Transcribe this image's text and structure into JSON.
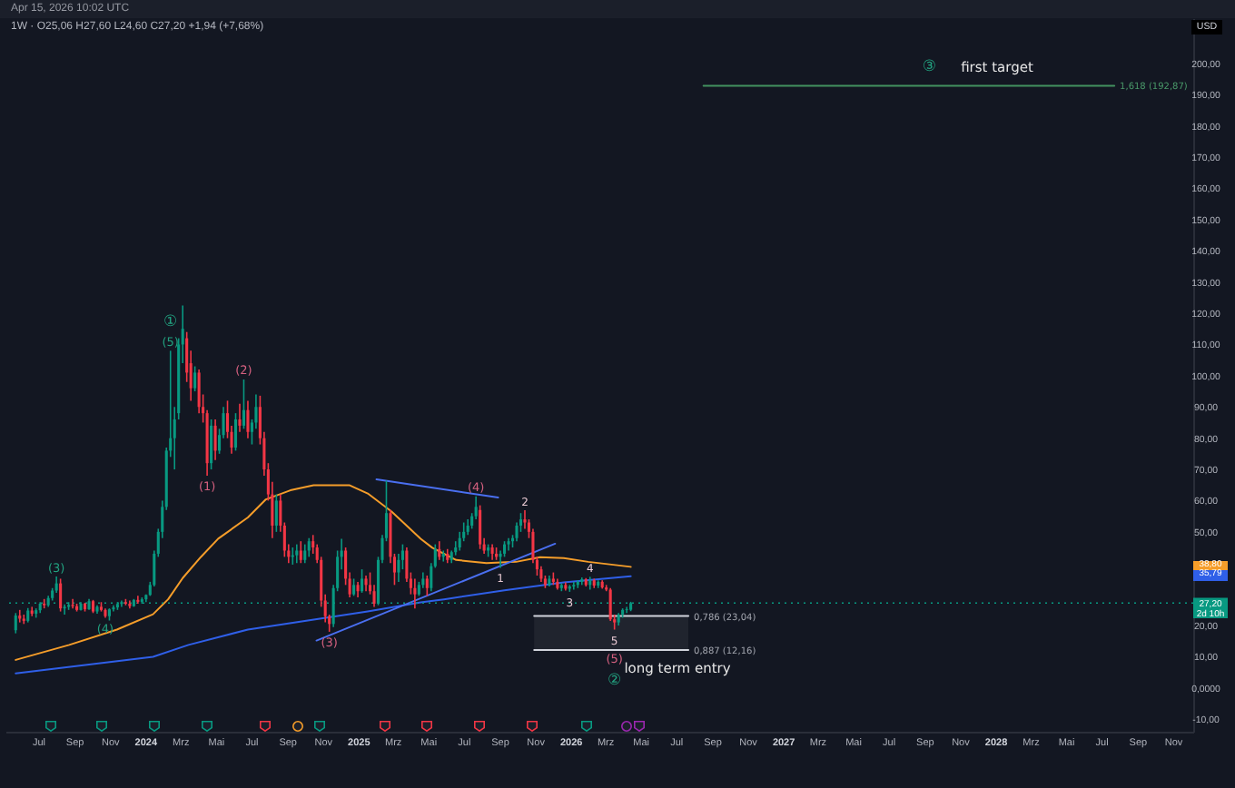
{
  "chart_data": {
    "type": "candlestick",
    "title": "Apr 15, 2026 10:02 UTC",
    "subtitle": "1W · O25,06 H27,60 L24,60 C27,20 +1,94 (+7,68%)",
    "ylabel": "USD",
    "x": [
      "2023-05-22",
      "2023-05-29",
      "2023-06-05",
      "2023-06-12",
      "2023-06-19",
      "2023-06-26",
      "2023-07-03",
      "2023-07-10",
      "2023-07-17",
      "2023-07-24",
      "2023-07-31",
      "2023-08-07",
      "2023-08-14",
      "2023-08-21",
      "2023-08-28",
      "2023-09-04",
      "2023-09-11",
      "2023-09-18",
      "2023-09-25",
      "2023-10-02",
      "2023-10-09",
      "2023-10-16",
      "2023-10-23",
      "2023-10-30",
      "2023-11-06",
      "2023-11-13",
      "2023-11-20",
      "2023-11-27",
      "2023-12-04",
      "2023-12-11",
      "2023-12-18",
      "2023-12-25",
      "2024-01-01",
      "2024-01-08",
      "2024-01-15",
      "2024-01-22",
      "2024-01-29",
      "2024-02-05",
      "2024-02-12",
      "2024-02-19",
      "2024-02-26",
      "2024-03-04",
      "2024-03-11",
      "2024-03-18",
      "2024-03-25",
      "2024-04-01",
      "2024-04-08",
      "2024-04-15",
      "2024-04-22",
      "2024-04-29",
      "2024-05-06",
      "2024-05-13",
      "2024-05-20",
      "2024-05-27",
      "2024-06-03",
      "2024-06-10",
      "2024-06-17",
      "2024-06-24",
      "2024-07-01",
      "2024-07-08",
      "2024-07-15",
      "2024-07-22",
      "2024-07-29",
      "2024-08-05",
      "2024-08-12",
      "2024-08-19",
      "2024-08-26",
      "2024-09-02",
      "2024-09-09",
      "2024-09-16",
      "2024-09-23",
      "2024-09-30",
      "2024-10-07",
      "2024-10-14",
      "2024-10-21",
      "2024-10-28",
      "2024-11-04",
      "2024-11-11",
      "2024-11-18",
      "2024-11-25",
      "2024-12-02",
      "2024-12-09",
      "2024-12-16",
      "2024-12-23",
      "2024-12-30",
      "2025-01-06",
      "2025-01-13",
      "2025-01-20",
      "2025-01-27",
      "2025-02-03",
      "2025-02-10",
      "2025-02-17",
      "2025-02-24",
      "2025-03-03",
      "2025-03-10",
      "2025-03-17",
      "2025-03-24",
      "2025-03-31",
      "2025-04-07",
      "2025-04-14",
      "2025-04-21",
      "2025-04-28",
      "2025-05-05",
      "2025-05-12",
      "2025-05-19",
      "2025-05-26",
      "2025-06-02",
      "2025-06-09",
      "2025-06-16",
      "2025-06-23",
      "2025-06-30",
      "2025-07-07",
      "2025-07-14",
      "2025-07-21",
      "2025-07-28",
      "2025-08-04",
      "2025-08-11",
      "2025-08-18",
      "2025-08-25",
      "2025-09-01",
      "2025-09-08",
      "2025-09-15",
      "2025-09-22",
      "2025-09-29",
      "2025-10-06",
      "2025-10-13",
      "2025-10-20",
      "2025-10-27",
      "2025-11-03",
      "2025-11-10",
      "2025-11-17",
      "2025-11-24",
      "2025-12-01",
      "2025-12-08",
      "2025-12-15",
      "2025-12-22",
      "2025-12-29",
      "2026-01-05",
      "2026-01-12",
      "2026-01-19",
      "2026-01-26",
      "2026-02-02",
      "2026-02-09",
      "2026-02-16",
      "2026-02-23",
      "2026-03-02",
      "2026-03-09",
      "2026-03-16",
      "2026-03-23",
      "2026-03-30",
      "2026-04-06",
      "2026-04-13"
    ],
    "ohlc": [
      [
        18.5,
        24,
        17.5,
        23.2
      ],
      [
        23.2,
        25,
        21,
        22.2
      ],
      [
        22.2,
        23.5,
        20.5,
        21.5
      ],
      [
        21.5,
        25.6,
        21,
        24.8
      ],
      [
        24.8,
        26,
        23,
        23.8
      ],
      [
        23.8,
        25.5,
        22.5,
        24.9
      ],
      [
        24.9,
        27.5,
        24,
        27
      ],
      [
        27,
        28.5,
        25.5,
        26.5
      ],
      [
        26.5,
        29.5,
        26,
        28.8
      ],
      [
        28.8,
        32,
        28,
        31.2
      ],
      [
        31.2,
        35.7,
        30.5,
        33.5
      ],
      [
        33.5,
        35,
        24.5,
        25.5
      ],
      [
        25.5,
        26.8,
        23.5,
        26
      ],
      [
        26,
        27.5,
        25,
        26.6
      ],
      [
        26.6,
        28.5,
        25.5,
        26.2
      ],
      [
        26.2,
        27,
        24.5,
        25
      ],
      [
        25,
        27.5,
        24.8,
        27
      ],
      [
        27,
        27.3,
        24.5,
        25.2
      ],
      [
        25.2,
        28.5,
        25,
        27.8
      ],
      [
        27.8,
        28.2,
        24,
        24.5
      ],
      [
        24.5,
        26.5,
        23.8,
        26
      ],
      [
        26,
        27.5,
        24.5,
        25
      ],
      [
        25,
        25.5,
        22.5,
        23
      ],
      [
        23,
        25.5,
        21.6,
        25.2
      ],
      [
        25.2,
        26.5,
        24.5,
        25.8
      ],
      [
        25.8,
        27.5,
        25,
        26.9
      ],
      [
        26.9,
        28,
        26,
        27.5
      ],
      [
        27.5,
        28.5,
        26.5,
        27
      ],
      [
        27,
        28,
        25.5,
        26.2
      ],
      [
        26.2,
        28.5,
        26,
        28.2
      ],
      [
        28.2,
        29.5,
        27,
        27.6
      ],
      [
        27.6,
        29,
        27,
        28.4
      ],
      [
        28.4,
        30,
        27.5,
        29.8
      ],
      [
        29.8,
        34,
        29.5,
        33
      ],
      [
        33,
        44,
        32.5,
        43
      ],
      [
        43,
        51,
        42,
        50
      ],
      [
        50,
        60,
        48,
        58
      ],
      [
        58,
        77,
        57,
        76
      ],
      [
        76,
        108,
        74,
        80
      ],
      [
        80,
        90,
        70,
        86
      ],
      [
        88,
        112,
        86,
        110
      ],
      [
        110,
        122.5,
        104,
        115
      ],
      [
        112,
        114,
        98,
        101
      ],
      [
        104,
        108,
        92,
        96
      ],
      [
        96,
        103,
        95,
        101
      ],
      [
        101,
        102,
        88,
        90
      ],
      [
        90,
        94,
        85,
        88
      ],
      [
        88,
        89,
        68,
        72
      ],
      [
        72,
        86,
        70,
        84
      ],
      [
        84,
        86,
        73,
        76
      ],
      [
        76,
        83,
        75,
        81
      ],
      [
        81,
        90,
        80,
        88
      ],
      [
        88,
        92,
        80,
        82
      ],
      [
        82,
        84,
        75,
        77
      ],
      [
        77,
        88,
        76,
        86
      ],
      [
        86,
        91,
        82,
        84
      ],
      [
        84,
        98.8,
        83,
        89
      ],
      [
        89,
        92,
        80,
        82
      ],
      [
        82,
        86,
        78,
        85
      ],
      [
        85,
        94,
        83,
        90
      ],
      [
        90,
        93.6,
        78,
        80
      ],
      [
        80,
        82,
        68,
        70
      ],
      [
        70,
        72,
        60,
        62
      ],
      [
        62,
        66,
        48,
        52
      ],
      [
        52,
        62,
        50,
        60
      ],
      [
        60,
        62,
        50,
        52
      ],
      [
        52,
        53,
        42,
        44
      ],
      [
        44,
        46,
        40,
        42
      ],
      [
        42,
        45,
        39.5,
        42.5
      ],
      [
        42.5,
        46,
        40,
        44
      ],
      [
        44,
        47,
        40,
        41
      ],
      [
        41,
        46,
        40,
        44
      ],
      [
        44,
        48,
        42,
        47
      ],
      [
        47,
        49,
        43,
        45
      ],
      [
        45,
        46,
        40,
        41
      ],
      [
        41,
        42,
        26,
        28
      ],
      [
        28,
        30,
        21,
        23
      ],
      [
        23,
        23.5,
        18,
        20.5
      ],
      [
        20.5,
        33,
        19.5,
        32
      ],
      [
        32,
        44,
        31,
        42
      ],
      [
        42,
        47.8,
        38,
        44
      ],
      [
        44,
        45,
        33,
        35
      ],
      [
        35,
        37,
        29,
        30
      ],
      [
        30,
        35,
        29.5,
        33
      ],
      [
        33,
        34,
        29,
        31
      ],
      [
        31,
        38,
        30.5,
        35
      ],
      [
        35,
        36,
        31,
        33
      ],
      [
        33,
        37,
        30,
        31
      ],
      [
        31,
        33,
        26,
        27
      ],
      [
        27,
        42,
        26.5,
        41
      ],
      [
        41,
        49,
        40,
        48
      ],
      [
        48,
        66.4,
        47,
        56
      ],
      [
        56,
        57,
        40,
        42
      ],
      [
        42,
        43,
        33,
        37
      ],
      [
        37,
        43,
        34,
        41
      ],
      [
        41,
        46,
        38,
        44
      ],
      [
        44,
        45,
        34,
        35
      ],
      [
        35,
        37,
        30,
        32
      ],
      [
        32,
        35,
        25.5,
        30
      ],
      [
        30,
        34,
        29.5,
        33
      ],
      [
        33,
        37,
        32,
        35
      ],
      [
        35,
        36,
        29.5,
        32
      ],
      [
        32,
        40,
        31,
        39
      ],
      [
        39,
        46,
        38.5,
        44.5
      ],
      [
        44.5,
        47,
        41,
        42
      ],
      [
        42,
        44,
        40.5,
        43
      ],
      [
        43,
        44.5,
        40,
        41
      ],
      [
        41,
        44,
        40,
        43.5
      ],
      [
        43.5,
        47,
        42.5,
        45
      ],
      [
        45,
        50,
        44,
        48
      ],
      [
        48,
        53,
        47,
        50
      ],
      [
        50,
        54,
        49,
        52
      ],
      [
        52,
        56,
        51,
        55
      ],
      [
        55,
        61.4,
        54,
        58
      ],
      [
        57,
        58.5,
        44.5,
        46
      ],
      [
        46,
        48,
        43,
        44
      ],
      [
        44,
        46,
        42,
        45
      ],
      [
        45,
        46,
        41,
        43
      ],
      [
        43,
        45,
        41,
        42
      ],
      [
        42,
        44,
        38.5,
        43
      ],
      [
        43,
        47,
        42,
        46
      ],
      [
        46,
        48,
        44,
        47
      ],
      [
        47,
        49,
        45,
        48
      ],
      [
        48,
        53,
        47,
        52
      ],
      [
        52,
        56,
        50,
        54
      ],
      [
        54,
        56.9,
        51,
        53
      ],
      [
        53,
        54,
        48,
        50
      ],
      [
        50,
        51,
        40,
        41
      ],
      [
        41,
        42,
        36,
        38
      ],
      [
        38,
        39,
        34,
        35
      ],
      [
        35,
        36,
        32,
        33
      ],
      [
        33,
        36,
        32.5,
        35
      ],
      [
        35,
        37,
        33,
        34
      ],
      [
        34,
        35,
        31.5,
        32
      ],
      [
        32,
        33.5,
        31,
        33
      ],
      [
        33,
        33.8,
        31.2,
        31.8
      ],
      [
        31.8,
        33,
        30.8,
        32.5
      ],
      [
        32.5,
        34,
        31.5,
        33
      ],
      [
        33,
        34.5,
        32,
        34
      ],
      [
        34,
        35.4,
        33,
        34.8
      ],
      [
        34.8,
        35.2,
        32.5,
        33
      ],
      [
        33,
        35.6,
        31.5,
        34.5
      ],
      [
        34.5,
        35,
        32,
        32.8
      ],
      [
        32.8,
        34.5,
        32,
        34
      ],
      [
        34,
        34.5,
        31.8,
        32.2
      ],
      [
        32.2,
        33,
        31,
        31.5
      ],
      [
        31.5,
        32,
        21.5,
        22
      ],
      [
        22,
        23.5,
        18.7,
        21
      ],
      [
        21,
        24,
        20,
        23.5
      ],
      [
        23.5,
        25.5,
        22.5,
        25
      ],
      [
        25,
        26,
        24,
        25.26
      ],
      [
        25.06,
        27.6,
        24.6,
        27.2
      ]
    ],
    "xlim": [
      "2023-05-20",
      "2028-11-19"
    ],
    "xticks": [
      {
        "value": "2023-07-01",
        "label": "Jul"
      },
      {
        "value": "2023-09-01",
        "label": "Sep"
      },
      {
        "value": "2023-11-01",
        "label": "Nov"
      },
      {
        "value": "2024-01-01",
        "label": "2024"
      },
      {
        "value": "2024-03-01",
        "label": "Mrz"
      },
      {
        "value": "2024-05-01",
        "label": "Mai"
      },
      {
        "value": "2024-07-01",
        "label": "Jul"
      },
      {
        "value": "2024-09-01",
        "label": "Sep"
      },
      {
        "value": "2024-11-01",
        "label": "Nov"
      },
      {
        "value": "2025-01-01",
        "label": "2025"
      },
      {
        "value": "2025-03-01",
        "label": "Mrz"
      },
      {
        "value": "2025-05-01",
        "label": "Mai"
      },
      {
        "value": "2025-07-01",
        "label": "Jul"
      },
      {
        "value": "2025-09-01",
        "label": "Sep"
      },
      {
        "value": "2025-11-01",
        "label": "Nov"
      },
      {
        "value": "2026-01-01",
        "label": "2026"
      },
      {
        "value": "2026-03-01",
        "label": "Mrz"
      },
      {
        "value": "2026-05-01",
        "label": "Mai"
      },
      {
        "value": "2026-07-01",
        "label": "Jul"
      },
      {
        "value": "2026-09-01",
        "label": "Sep"
      },
      {
        "value": "2026-11-01",
        "label": "Nov"
      },
      {
        "value": "2027-01-01",
        "label": "2027"
      },
      {
        "value": "2027-03-01",
        "label": "Mrz"
      },
      {
        "value": "2027-05-01",
        "label": "Mai"
      },
      {
        "value": "2027-07-01",
        "label": "Jul"
      },
      {
        "value": "2027-09-01",
        "label": "Sep"
      },
      {
        "value": "2027-11-01",
        "label": "Nov"
      },
      {
        "value": "2028-01-01",
        "label": "2028"
      },
      {
        "value": "2028-03-01",
        "label": "Mrz"
      },
      {
        "value": "2028-05-01",
        "label": "Mai"
      },
      {
        "value": "2028-07-01",
        "label": "Jul"
      },
      {
        "value": "2028-09-01",
        "label": "Sep"
      },
      {
        "value": "2028-11-01",
        "label": "Nov"
      }
    ],
    "ylim": [
      -14,
      214.5
    ],
    "yticks": [
      {
        "value": 200,
        "label": "200,00"
      },
      {
        "value": 190,
        "label": "190,00"
      },
      {
        "value": 180,
        "label": "180,00"
      },
      {
        "value": 170,
        "label": "170,00"
      },
      {
        "value": 160,
        "label": "160,00"
      },
      {
        "value": 150,
        "label": "150,00"
      },
      {
        "value": 140,
        "label": "140,00"
      },
      {
        "value": 130,
        "label": "130,00"
      },
      {
        "value": 120,
        "label": "120,00"
      },
      {
        "value": 110,
        "label": "110,00"
      },
      {
        "value": 100,
        "label": "100,00"
      },
      {
        "value": 90,
        "label": "90,00"
      },
      {
        "value": 80,
        "label": "80,00"
      },
      {
        "value": 70,
        "label": "70,00"
      },
      {
        "value": 60,
        "label": "60,00"
      },
      {
        "value": 50,
        "label": "50,00"
      },
      {
        "value": 20,
        "label": "20,00"
      },
      {
        "value": 10,
        "label": "10,00"
      },
      {
        "value": 0,
        "label": "0,0000"
      },
      {
        "value": -10,
        "label": "-10,00"
      }
    ],
    "series": [
      {
        "type": "line",
        "color": "#f59d2a",
        "x": [
          "2023-05-22",
          "2023-08-22",
          "2023-11-12",
          "2024-01-13",
          "2024-02-08",
          "2024-03-04",
          "2024-04-04",
          "2024-05-04",
          "2024-06-24",
          "2024-07-25",
          "2024-09-05",
          "2024-10-15",
          "2024-12-16",
          "2025-01-16",
          "2025-02-26",
          "2025-04-17",
          "2025-05-07",
          "2025-06-17",
          "2025-08-08",
          "2025-09-28",
          "2025-11-08",
          "2025-12-19",
          "2026-01-30",
          "2026-04-13"
        ],
        "values": [
          9,
          13.8,
          18.7,
          23.6,
          28.4,
          35.2,
          41.9,
          47.8,
          54.6,
          60.4,
          63.3,
          64.9,
          64.9,
          62.3,
          56.5,
          47.8,
          44.9,
          41,
          40,
          40.4,
          41.9,
          41.6,
          40.4,
          38.8
        ]
      },
      {
        "type": "line",
        "color": "#2f5fe8",
        "x": [
          "2023-05-22",
          "2024-01-13",
          "2024-03-14",
          "2024-06-24",
          "2024-10-05",
          "2025-01-16",
          "2025-04-17",
          "2025-05-27",
          "2025-09-08",
          "2025-12-19",
          "2026-04-13"
        ],
        "values": [
          4.7,
          10,
          13.8,
          18.7,
          21.6,
          24.5,
          27.4,
          28.4,
          31.3,
          33.8,
          35.8
        ]
      },
      {
        "type": "line",
        "color": "#4a6ff0",
        "x": [
          "2025-01-31",
          "2025-08-28"
        ],
        "values": [
          66.8,
          61
        ]
      },
      {
        "type": "line",
        "color": "#4a6ff0",
        "x": [
          "2024-10-20",
          "2025-12-04"
        ],
        "values": [
          15.2,
          46.2
        ]
      },
      {
        "type": "line",
        "color": "#d1d4dc",
        "x": [
          "2025-10-29",
          "2026-07-21"
        ],
        "values": [
          23.04,
          23.04
        ],
        "lower": [
          12.16,
          12.16
        ],
        "upper": [
          23.04,
          23.04
        ]
      },
      {
        "type": "line",
        "color": "#d1d4dc",
        "x": [
          "2025-10-29",
          "2026-07-21"
        ],
        "values": [
          12.16,
          12.16
        ]
      },
      {
        "type": "line",
        "color": "#43915f",
        "x": [
          "2026-08-16",
          "2028-07-22"
        ],
        "values": [
          192.87,
          192.87
        ]
      }
    ],
    "ref_lines": [
      {
        "axis": "y",
        "value": 27.2,
        "label": "27,20\n2d 10h",
        "color": "#089981",
        "line_style": "dotted"
      }
    ],
    "annotations": [
      {
        "text": "(3)",
        "x": "2023-07-31",
        "y": 35.7
      },
      {
        "text": "(4)",
        "x": "2023-10-23",
        "y": 22.5
      },
      {
        "text": "(5)",
        "x": "2024-02-12",
        "y": 108
      },
      {
        "text": "①",
        "x": "2024-02-12",
        "y": 108
      },
      {
        "text": "(1)",
        "x": "2024-04-15",
        "y": 68
      },
      {
        "text": "(2)",
        "x": "2024-06-17",
        "y": 98.8
      },
      {
        "text": "(3)",
        "x": "2024-11-11",
        "y": 18
      },
      {
        "text": "(4)",
        "x": "2025-07-21",
        "y": 61.4
      },
      {
        "text": "1",
        "x": "2025-09-01",
        "y": 38.5
      },
      {
        "text": "2",
        "x": "2025-10-13",
        "y": 56.9
      },
      {
        "text": "3",
        "x": "2025-12-29",
        "y": 30.8
      },
      {
        "text": "4",
        "x": "2026-02-02",
        "y": 35.6
      },
      {
        "text": "5",
        "x": "2026-03-16",
        "y": 18.7
      },
      {
        "text": "(5)",
        "x": "2026-03-16",
        "y": 18.7
      },
      {
        "text": "②",
        "x": "2026-03-16",
        "y": 18.7
      },
      "long term entry",
      {
        "text": "0,786 (23,04)",
        "x": "2026-07-21",
        "y": 23.04
      },
      {
        "text": "0,887 (12,16)",
        "x": "2026-07-21",
        "y": 12.16
      },
      "③",
      "first target",
      {
        "text": "1,618 (192,87)",
        "x": "2028-07-22",
        "y": 192.87
      },
      "38,80",
      "35,79"
    ]
  }
}
